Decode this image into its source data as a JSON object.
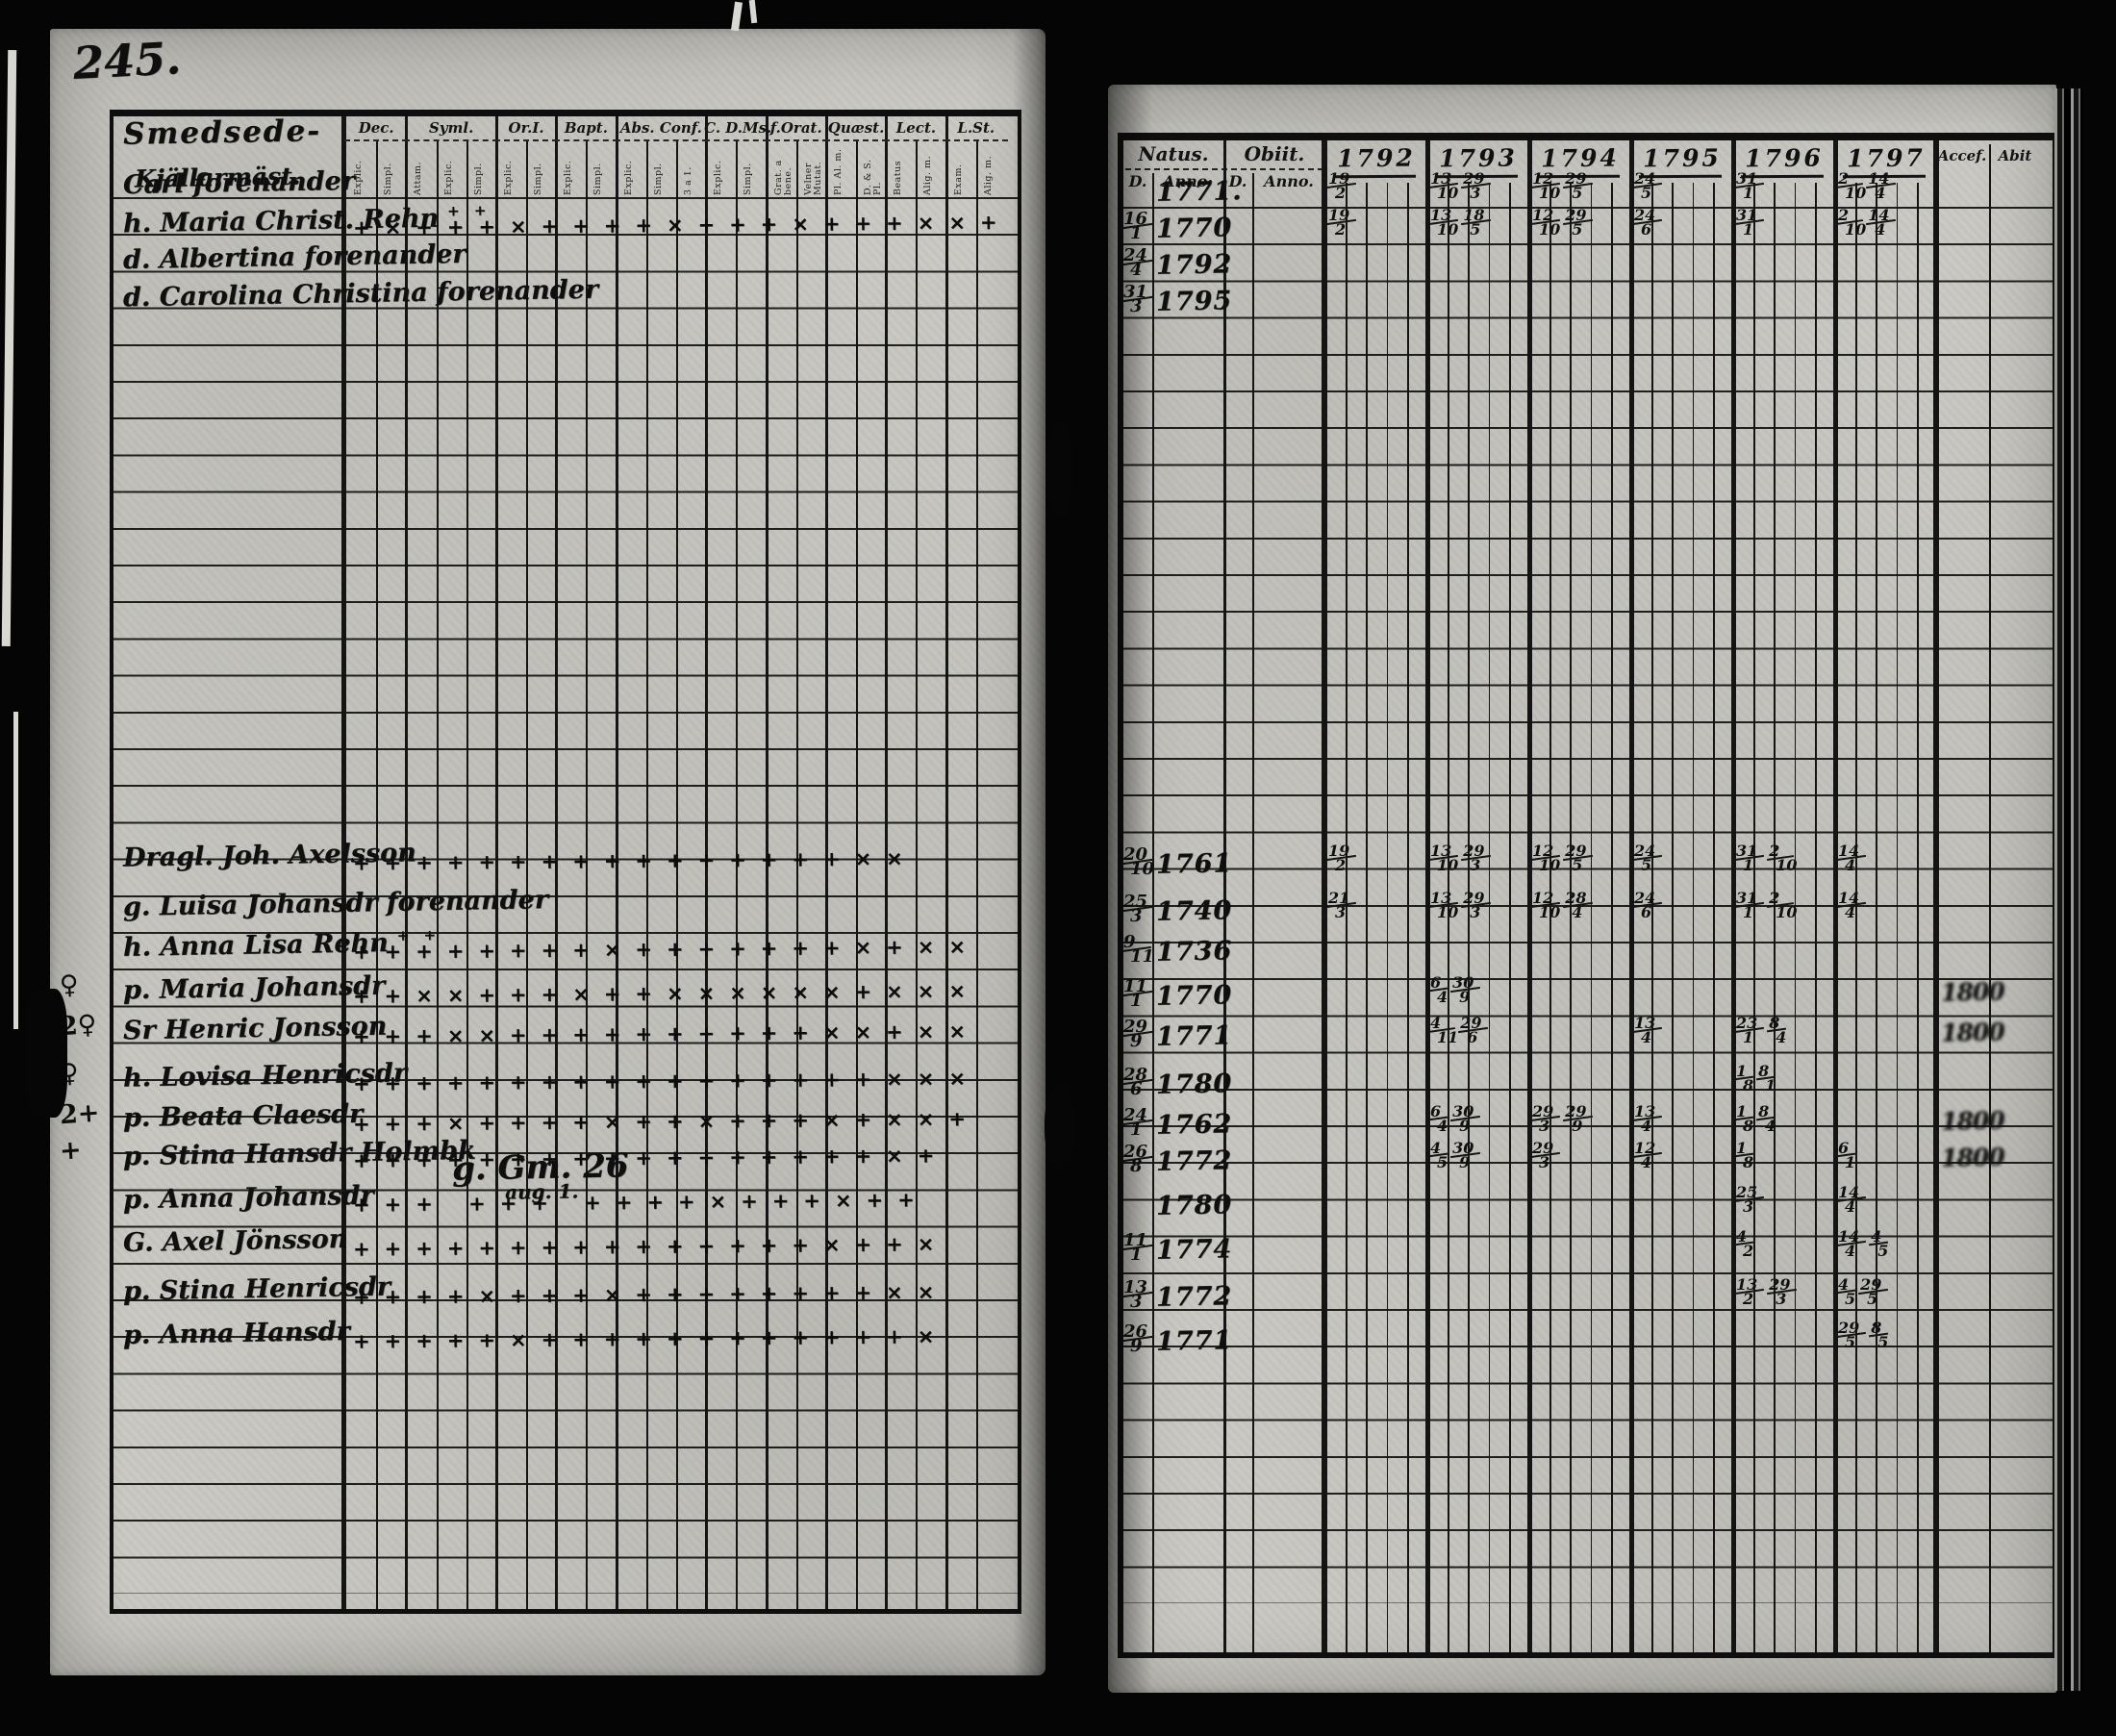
{
  "meta": {
    "page_number": "245.",
    "document_kind": "parish examination ledger spread"
  },
  "left_page": {
    "place_title": "Smedsede-",
    "occupation": "Kjällarmäst.",
    "column_groups": [
      {
        "label": "Dec.",
        "subs": [
          "Explic.",
          "Simpl."
        ]
      },
      {
        "label": "Syml.",
        "subs": [
          "Attam.",
          "Explic.",
          "Simpl."
        ]
      },
      {
        "label": "Or.I.",
        "subs": [
          "Explic.",
          "Simpl."
        ]
      },
      {
        "label": "Bapt.",
        "subs": [
          "Explic.",
          "Simpl."
        ]
      },
      {
        "label": "Abs. Conf.",
        "subs": [
          "Explic.",
          "Simpl.",
          "3 a 1."
        ]
      },
      {
        "label": "C. D.Ms.",
        "subs": [
          "Explic.",
          "Simpl."
        ]
      },
      {
        "label": "f.Orat.",
        "subs": [
          "Grat. a bene.",
          "Velner Mutat."
        ]
      },
      {
        "label": "Quæst.",
        "subs": [
          "Pl. Al. m.",
          "D. & S. Pl."
        ]
      },
      {
        "label": "Lect.",
        "subs": [
          "Beatus",
          "Alig. m."
        ]
      },
      {
        "label": "L.St.",
        "subs": [
          "Exam.",
          "Alig. m."
        ]
      }
    ]
  },
  "right_page": {
    "natus_title": "Natus.",
    "natus_d_label": "D.",
    "natus_anno_label": "Anno·",
    "obiit_title": "Obiit.",
    "obiit_d_label": "D.",
    "obiit_anno_label": "Anno.",
    "years": [
      "1792",
      "1793",
      "1794",
      "1795",
      "1796",
      "1797"
    ],
    "accessit_label": "Accef.",
    "abit_label": "Abit"
  },
  "records": [
    {
      "row": 0,
      "name": "Carl forenander",
      "natus_year": "1771.",
      "years": [
        "19/2",
        "13/10 29/3",
        "12/10 29/5",
        "24/5",
        "31/1",
        "2/10 14/4"
      ]
    },
    {
      "row": 1,
      "name": "h. Maria Christ. Rehn",
      "sup": "+ +",
      "ticks": "+×+++×++++×+++×+++××+",
      "natus_day": "16/1",
      "natus_year": "1770",
      "years": [
        "19/2",
        "13/10 18/5",
        "12/10 29/5",
        "24/6",
        "31/1",
        "2/10 14/4"
      ]
    },
    {
      "row": 2,
      "name": "d. Albertina forenander",
      "natus_day": "24/4",
      "natus_year": "1792"
    },
    {
      "row": 3,
      "name": "d. Carolina Christina forenander",
      "natus_day": "31/3",
      "natus_year": "1795"
    },
    {
      "row": 18.3,
      "name": "Dragl. Joh. Axelsson",
      "ticks": "++++++++++++++++××",
      "natus_day": "20/10",
      "natus_year": "1761",
      "years": [
        "19/2",
        "13/10 29/3",
        "12/10 29/5",
        "24/5",
        "31/1 2/10",
        "14/4"
      ]
    },
    {
      "row": 19.6,
      "name": "g. Luisa Johansdr forenander",
      "natus_day": "25/3",
      "natus_year": "1740",
      "years": [
        "21/3",
        "13/10 29/3",
        "12/10 28/4",
        "24/6",
        "31/1 2/10",
        "14/4"
      ]
    },
    {
      "row": 20.7,
      "name": "h. Anna Lisa Rehn",
      "sup": "+ +",
      "ticks": "++++++++×+++++++×+××",
      "natus_day": "9/11",
      "natus_year": "1736"
    },
    {
      "row": 21.9,
      "name": "p. Maria Johansdr",
      "margin": "♀",
      "ticks": "++××+++×++××××××+×××",
      "natus_day": "11/1",
      "natus_year": "1770",
      "years": [
        "",
        "6/4 30/9",
        "",
        "",
        "",
        ""
      ],
      "accessit": "1800"
    },
    {
      "row": 23.0,
      "name": "Sr Henric Jonsson",
      "margin": "2♀",
      "ticks": "+++××++++++++++××+××",
      "natus_day": "29/9",
      "natus_year": "1771",
      "years": [
        "",
        "4/11 29/6",
        "",
        "13/4",
        "23/1 8/4",
        ""
      ],
      "accessit": "1800"
    },
    {
      "row": 24.3,
      "name": "h. Lovisa Henricsdr",
      "margin": "♀",
      "ticks": "+++++++++++++++++×××",
      "natus_day": "28/6",
      "natus_year": "1780",
      "years": [
        "",
        "",
        "",
        "",
        "1/8 8/1",
        ""
      ]
    },
    {
      "row": 25.4,
      "name": "p. Beata Claesdr",
      "margin": "2+",
      "ticks": "+++×++++×++×+++×+××+",
      "natus_day": "24/1",
      "natus_year": "1762",
      "years": [
        "",
        "6/4 30/9",
        "29/3 29/9",
        "13/4",
        "1/8 8/4",
        ""
      ],
      "accessit": "1800"
    },
    {
      "row": 26.4,
      "name": "p. Stina Hansdr Holmbk",
      "margin": "+",
      "ticks": "+++++++++++++++++×+",
      "natus_day": "26/8",
      "natus_year": "1772",
      "years": [
        "",
        "4/5 30/9",
        "29/3",
        "12/4",
        "1/8",
        "6/1"
      ],
      "accessit": "1800"
    },
    {
      "row": 27.6,
      "name": "p. Anna Johansdr",
      "ticks": "+++ +++ ++++×+++×++",
      "annotation": [
        "g. Gm. 26",
        "aug. 1."
      ],
      "natus_year": "1780",
      "years": [
        "",
        "",
        "",
        "",
        "25/3",
        "14/4"
      ]
    },
    {
      "row": 28.8,
      "name": "G. Axel Jönsson",
      "ticks": "+++++++++++++++×++×",
      "natus_day": "11/1",
      "natus_year": "1774",
      "years": [
        "",
        "",
        "",
        "",
        "4/2",
        "14/4 4/5"
      ]
    },
    {
      "row": 30.1,
      "name": "p. Stina Henricsdr",
      "ticks": "++++×+++×++++++++××",
      "natus_day": "13/3",
      "natus_year": "1772",
      "years": [
        "",
        "",
        "",
        "",
        "13/2 29/3",
        "4/5 29/5"
      ]
    },
    {
      "row": 31.3,
      "name": "p. Anna Hansdr",
      "ticks": "+++++×++++++++++++×",
      "natus_day": "26/9",
      "natus_year": "1771",
      "years": [
        "",
        "",
        "",
        "",
        "",
        "29/5 8/5"
      ]
    }
  ]
}
